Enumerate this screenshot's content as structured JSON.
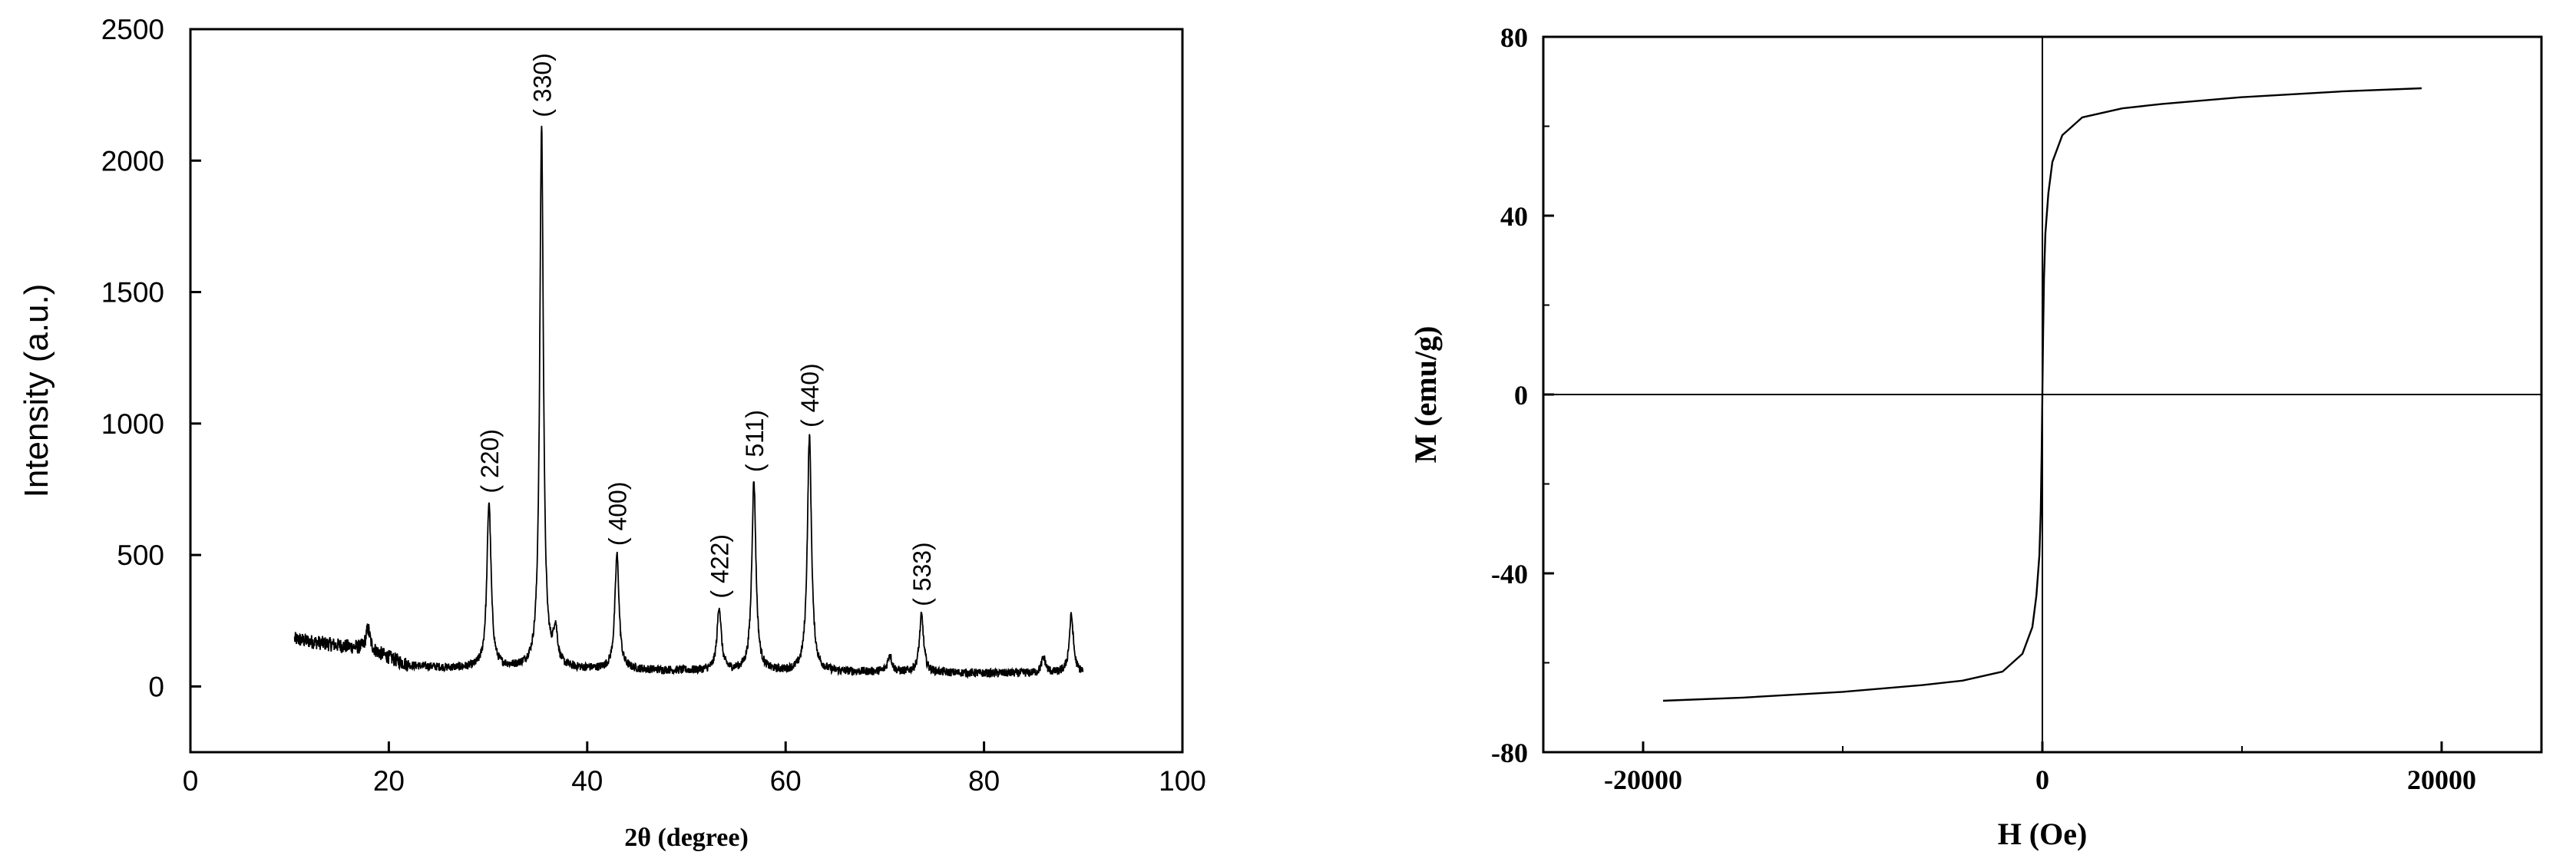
{
  "chart_data": [
    {
      "type": "line",
      "title": "",
      "xlabel": "2θ (degree)",
      "ylabel": "Intensity (a.u.)",
      "xlim": [
        0,
        100
      ],
      "ylim": [
        -250,
        2500
      ],
      "xticks": [
        "0",
        "20",
        "40",
        "60",
        "80",
        "100"
      ],
      "yticks": [
        "0",
        "500",
        "1000",
        "1500",
        "2000",
        "2500"
      ],
      "xtick_values": [
        0,
        20,
        40,
        60,
        80,
        100
      ],
      "ytick_values": [
        0,
        500,
        1000,
        1500,
        2000,
        2500
      ],
      "grid": false,
      "legend": "none",
      "line_color": "#000000",
      "x_range": [
        10.5,
        90
      ],
      "baseline": [
        [
          10.5,
          180
        ],
        [
          14,
          160
        ],
        [
          18,
          140
        ],
        [
          22,
          80
        ],
        [
          26,
          70
        ],
        [
          30,
          70
        ],
        [
          40,
          65
        ],
        [
          50,
          60
        ],
        [
          60,
          55
        ],
        [
          70,
          55
        ],
        [
          80,
          50
        ],
        [
          90,
          50
        ]
      ],
      "peaks": [
        {
          "x": 17.9,
          "y": 220,
          "label": ""
        },
        {
          "x": 30.1,
          "y": 700,
          "label": "( 220)"
        },
        {
          "x": 35.4,
          "y": 2130,
          "label": "( 330)"
        },
        {
          "x": 36.8,
          "y": 200,
          "label": ""
        },
        {
          "x": 43.0,
          "y": 500,
          "label": "( 400)"
        },
        {
          "x": 53.3,
          "y": 300,
          "label": "( 422)"
        },
        {
          "x": 56.8,
          "y": 780,
          "label": "( 511)"
        },
        {
          "x": 62.4,
          "y": 950,
          "label": "( 440)"
        },
        {
          "x": 70.5,
          "y": 120,
          "label": ""
        },
        {
          "x": 73.7,
          "y": 270,
          "label": "( 533)"
        },
        {
          "x": 86.0,
          "y": 110,
          "label": ""
        },
        {
          "x": 88.8,
          "y": 270,
          "label": ""
        }
      ]
    },
    {
      "type": "line",
      "title": "",
      "xlabel": "H (Oe)",
      "ylabel": "M (emu/g)",
      "xlim": [
        -25000,
        25000
      ],
      "ylim": [
        -80,
        80
      ],
      "xticks": [
        "-20000",
        "0",
        "20000"
      ],
      "yticks": [
        "-80",
        "-40",
        "0",
        "40",
        "80"
      ],
      "xtick_values": [
        -20000,
        0,
        20000
      ],
      "ytick_values": [
        -80,
        -40,
        0,
        40,
        80
      ],
      "grid": false,
      "legend": "none",
      "line_color": "#000000",
      "reference_lines": [
        "x=0",
        "y=0"
      ],
      "series": [
        {
          "x": [
            -19000,
            -15000,
            -10000,
            -6000,
            -4000,
            -2000,
            -1000,
            -500,
            -300,
            -150,
            -80,
            -40,
            0,
            40,
            80,
            150,
            300,
            500,
            1000,
            2000,
            4000,
            6000,
            10000,
            15000,
            19000
          ],
          "y": [
            -68.5,
            -67.8,
            -66.5,
            -65.0,
            -64.0,
            -62.0,
            -58.0,
            -52.0,
            -45.0,
            -36.0,
            -26.0,
            -14.0,
            0,
            14.0,
            26.0,
            36.0,
            45.0,
            52.0,
            58.0,
            62.0,
            64.0,
            65.0,
            66.5,
            67.8,
            68.5
          ]
        }
      ]
    }
  ]
}
